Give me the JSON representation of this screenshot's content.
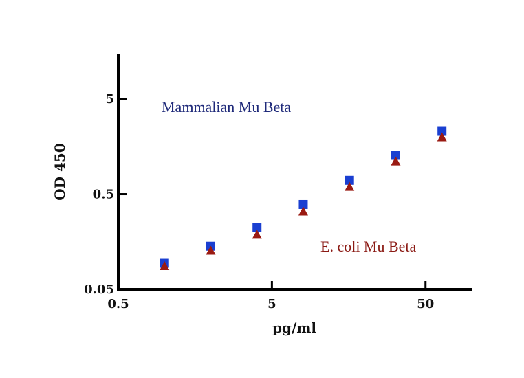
{
  "chart_data": {
    "type": "scatter",
    "xlabel": "pg/ml",
    "ylabel": "OD 450",
    "x_scale": "log",
    "y_scale": "log",
    "xlim": [
      0.5,
      100
    ],
    "ylim": [
      0.05,
      15
    ],
    "x_ticks": [
      0.5,
      5,
      50
    ],
    "x_tick_labels": [
      "0.5",
      "5",
      "50"
    ],
    "y_ticks": [
      0.05,
      0.5,
      5
    ],
    "y_tick_labels": [
      "0.05",
      "0.5",
      "5"
    ],
    "grid": false,
    "series": [
      {
        "name": "Mammalian Mu Beta",
        "marker": "square",
        "color": "#1a3fd1",
        "label_color": "#1f2a7a",
        "x": [
          1.0,
          2.0,
          4.0,
          8.0,
          16.0,
          32.0,
          64.0
        ],
        "y": [
          0.094,
          0.142,
          0.224,
          0.39,
          0.7,
          1.28,
          2.29
        ]
      },
      {
        "name": "E. coli Mu Beta",
        "marker": "triangle",
        "color": "#9a1a12",
        "label_color": "#8b1a14",
        "x": [
          1.0,
          2.0,
          4.0,
          8.0,
          16.0,
          32.0,
          64.0
        ],
        "y": [
          0.088,
          0.128,
          0.188,
          0.33,
          0.6,
          1.11,
          1.99
        ]
      }
    ]
  }
}
